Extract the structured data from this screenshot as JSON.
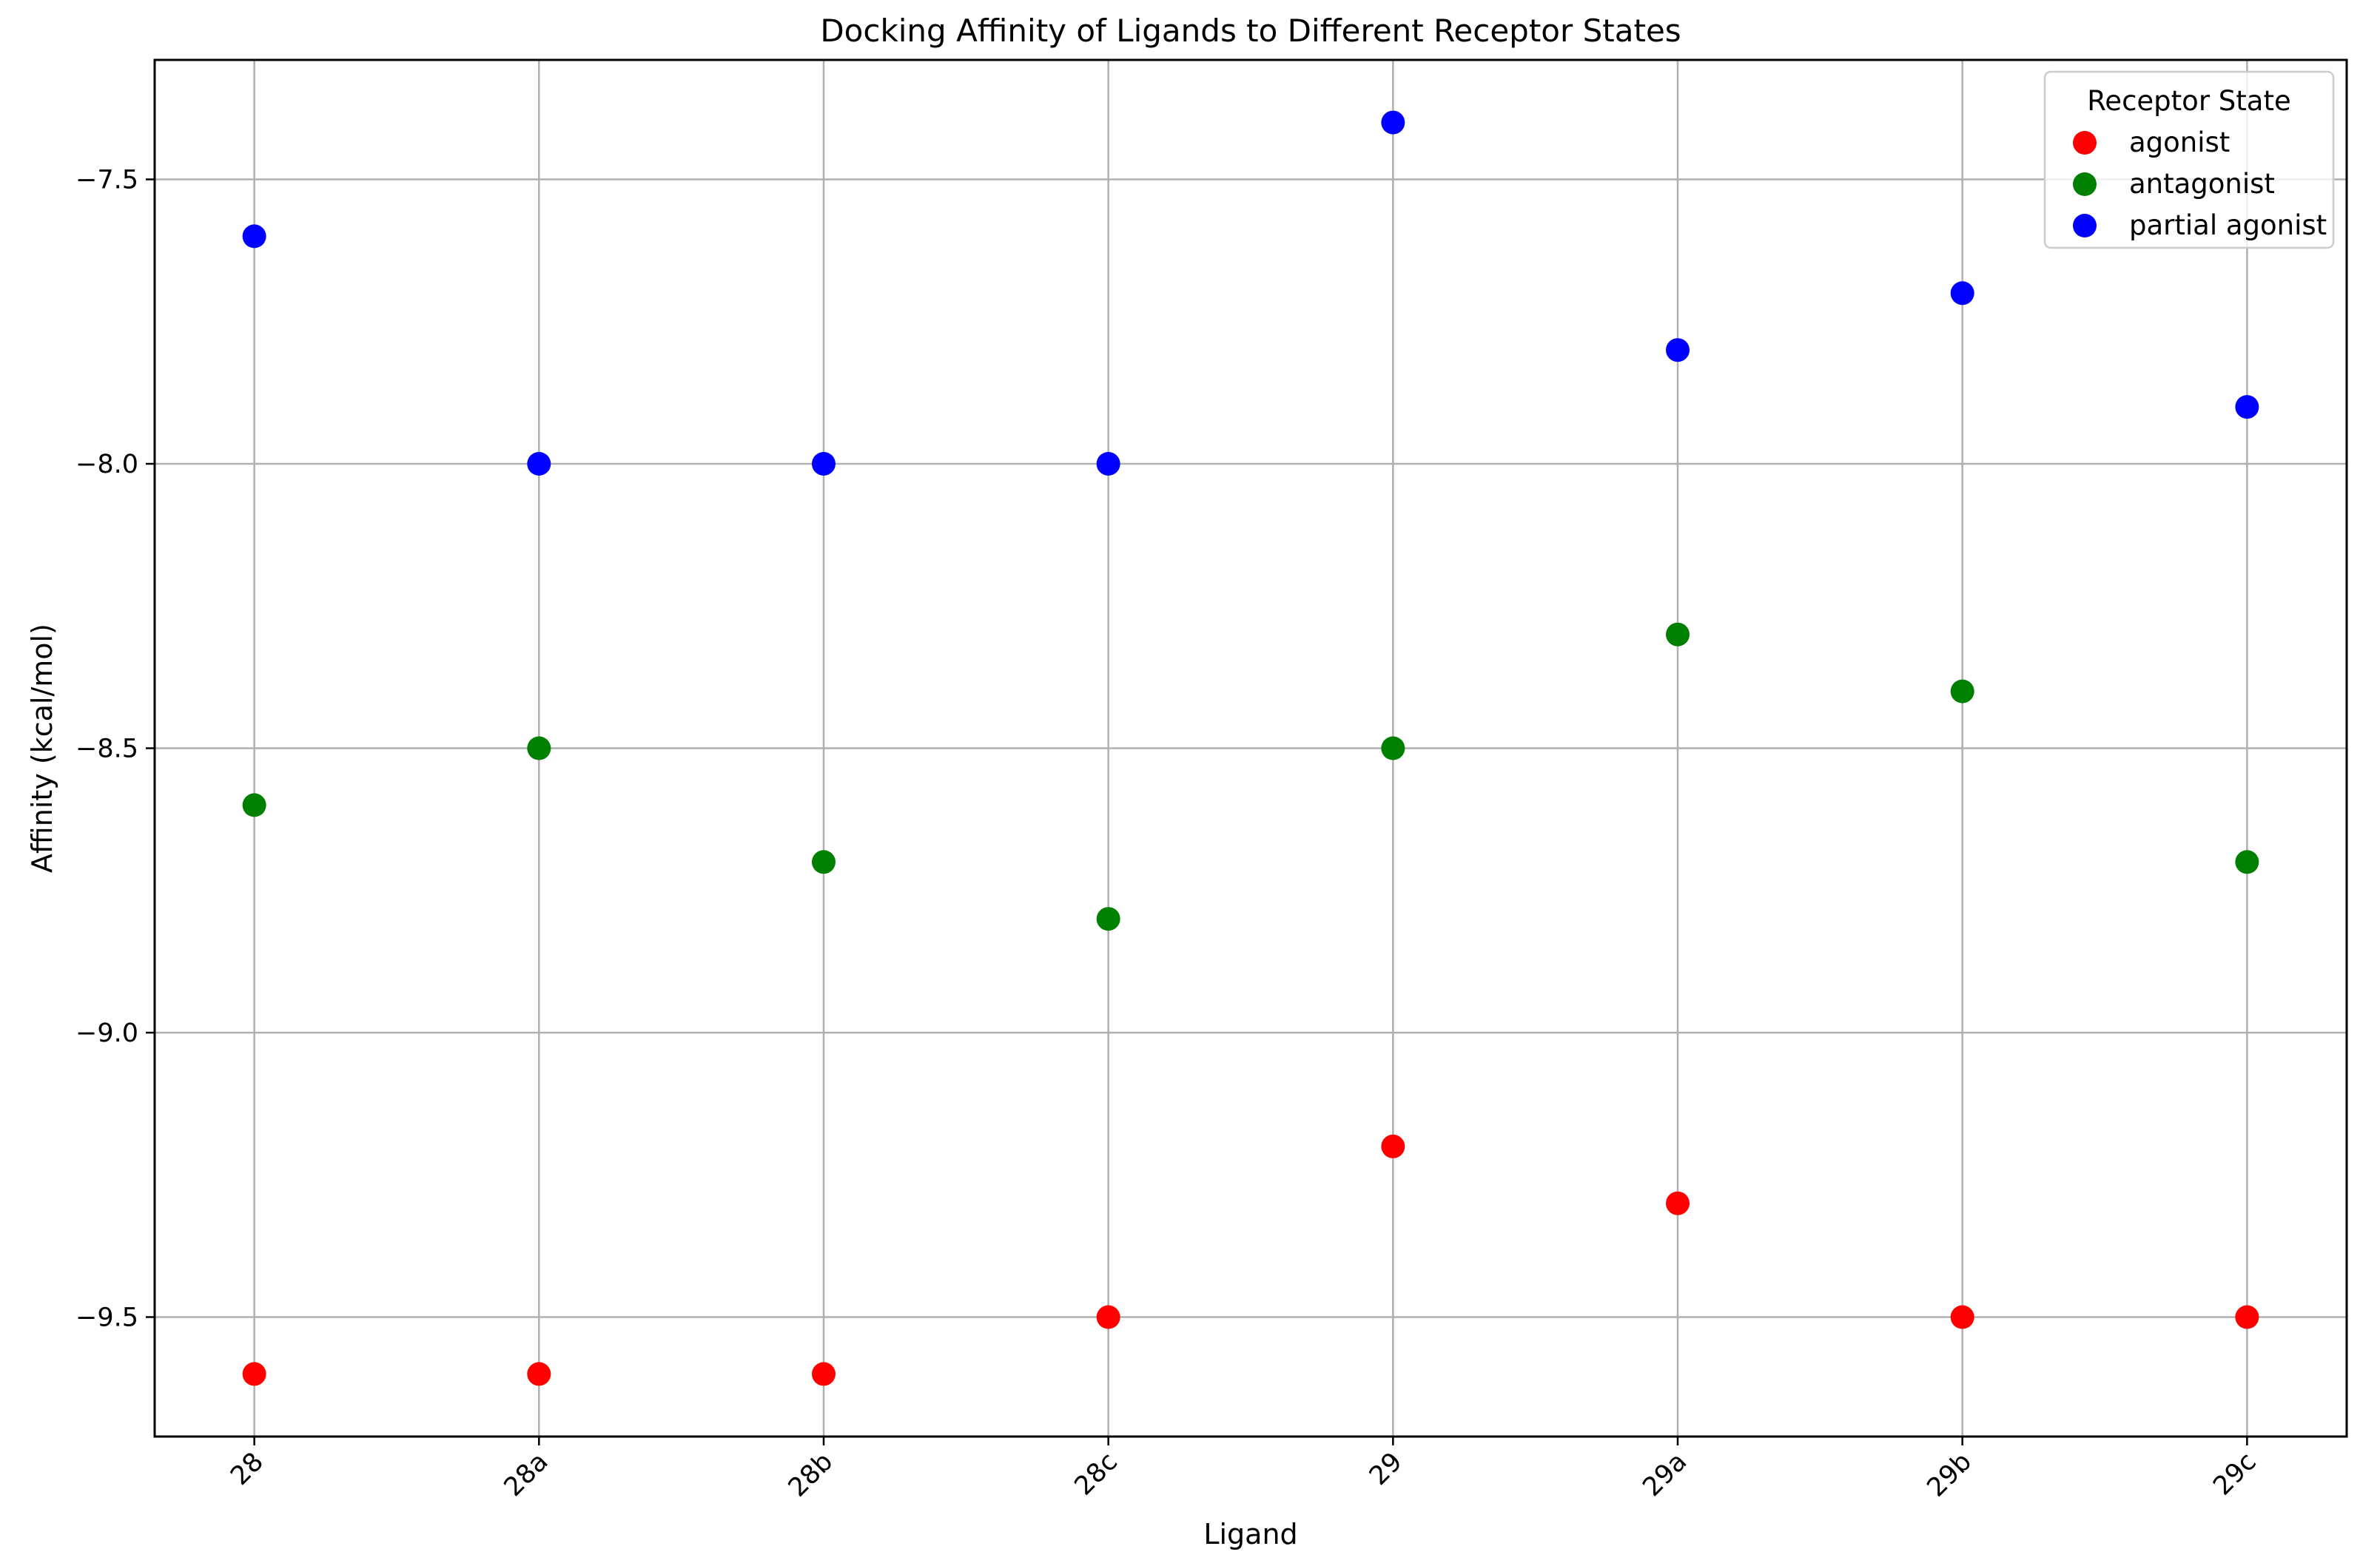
{
  "chart_data": {
    "type": "scatter",
    "title": "Docking Affinity of Ligands to Different Receptor States",
    "xlabel": "Ligand",
    "ylabel": "Affinity (kcal/mol)",
    "categories": [
      "28",
      "28a",
      "28b",
      "28c",
      "29",
      "29a",
      "29b",
      "29c"
    ],
    "ylim": [
      -9.71,
      -7.29
    ],
    "yticks": [
      -7.5,
      -8.0,
      -8.5,
      -9.0,
      -9.5
    ],
    "ytick_labels": [
      "−7.5",
      "−8.0",
      "−8.5",
      "−9.0",
      "−9.5"
    ],
    "grid": true,
    "legend": {
      "title": "Receptor State",
      "position": "top-right"
    },
    "series": [
      {
        "name": "agonist",
        "color": "#ff0000",
        "values": [
          -9.6,
          -9.6,
          -9.6,
          -9.5,
          -9.2,
          -9.3,
          -9.5,
          -9.5
        ]
      },
      {
        "name": "antagonist",
        "color": "#008000",
        "values": [
          -8.6,
          -8.5,
          -8.7,
          -8.8,
          -8.5,
          -8.3,
          -8.4,
          -8.7
        ]
      },
      {
        "name": "partial agonist",
        "color": "#0000ff",
        "values": [
          -7.6,
          -8.0,
          -8.0,
          -8.0,
          -7.4,
          -7.8,
          -7.7,
          -7.9
        ]
      }
    ]
  }
}
